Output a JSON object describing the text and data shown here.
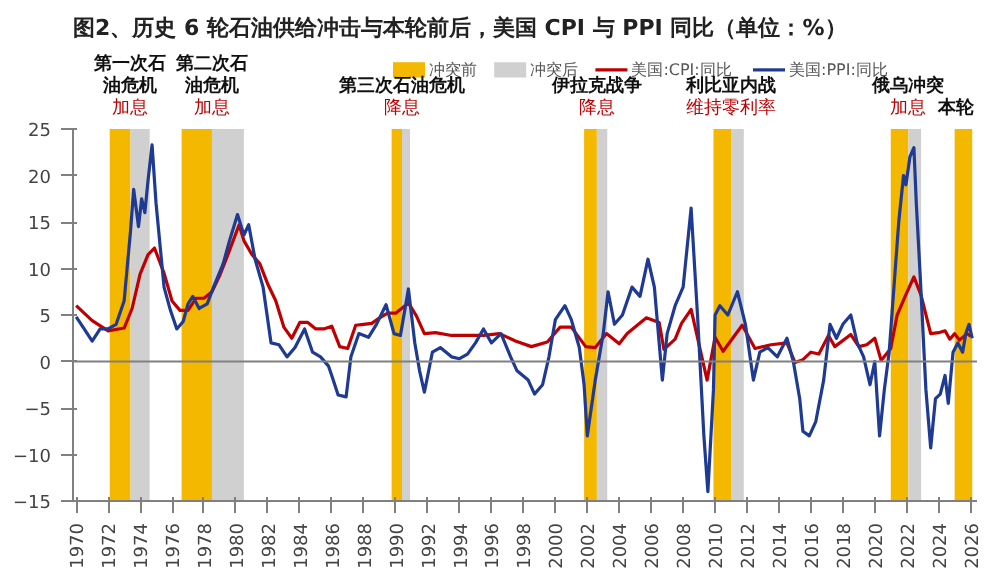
{
  "chart_data": {
    "type": "line",
    "title": "图2、历史 6 轮石油供给冲击与本轮前后，美国 CPI 与 PPI 同比（单位：%）",
    "series": [
      {
        "name": "美国:CPI:同比",
        "color": "#c00000",
        "x": [
          1970,
          1971,
          1972,
          1973,
          1973.5,
          1974,
          1974.5,
          1974.9,
          1975.5,
          1976,
          1976.5,
          1977,
          1977.5,
          1978,
          1978.5,
          1979,
          1979.5,
          1980.2,
          1980.5,
          1981,
          1981.5,
          1982,
          1982.5,
          1983,
          1983.5,
          1984,
          1984.5,
          1985,
          1985.5,
          1986,
          1986.5,
          1987,
          1987.5,
          1988,
          1988.5,
          1989,
          1989.5,
          1990,
          1990.8,
          1991.3,
          1991.8,
          1992.5,
          1993.5,
          1994.5,
          1995.5,
          1996.5,
          1997.5,
          1998.5,
          1999.5,
          2000.3,
          2001,
          2001.9,
          2002.5,
          2003.2,
          2004,
          2004.5,
          2005.7,
          2006.5,
          2006.8,
          2007.5,
          2007.9,
          2008.5,
          2009.5,
          2010,
          2010.5,
          2011.7,
          2012.5,
          2013.5,
          2014.5,
          2015,
          2015.5,
          2016,
          2016.5,
          2017.1,
          2017.5,
          2018.5,
          2019,
          2019.5,
          2020,
          2020.4,
          2021,
          2021.4,
          2021.9,
          2022.45,
          2022.9,
          2023.5,
          2024,
          2024.4,
          2024.7,
          2025,
          2025.3,
          2025.8,
          2026
        ],
        "values": [
          6.0,
          4.4,
          3.3,
          3.6,
          5.7,
          9.4,
          11.5,
          12.2,
          9.5,
          6.5,
          5.5,
          5.5,
          6.8,
          6.8,
          7.5,
          9.3,
          11.5,
          14.7,
          13.0,
          11.5,
          10.5,
          8.3,
          6.5,
          3.7,
          2.5,
          4.2,
          4.2,
          3.5,
          3.5,
          3.8,
          1.6,
          1.4,
          3.9,
          4.0,
          4.1,
          4.7,
          5.2,
          5.2,
          6.3,
          4.9,
          3.0,
          3.1,
          2.8,
          2.8,
          2.8,
          3.0,
          2.2,
          1.6,
          2.1,
          3.7,
          3.7,
          1.6,
          1.5,
          3.0,
          1.9,
          3.0,
          4.7,
          4.2,
          1.3,
          2.4,
          4.1,
          5.6,
          -2.0,
          2.6,
          1.1,
          3.9,
          1.4,
          1.8,
          2.0,
          -0.1,
          0.2,
          1.0,
          0.8,
          2.8,
          1.6,
          2.9,
          1.6,
          1.8,
          2.5,
          0.1,
          1.4,
          5.0,
          7.0,
          9.1,
          7.1,
          3.0,
          3.1,
          3.3,
          2.4,
          3.0,
          2.3,
          3.0,
          2.7
        ]
      },
      {
        "name": "美国:PPI:同比",
        "color": "#1f3a93",
        "x": [
          1970,
          1970.5,
          1971,
          1971.5,
          1972,
          1972.5,
          1973,
          1973.4,
          1973.6,
          1973.9,
          1974.1,
          1974.3,
          1974.5,
          1974.75,
          1975,
          1975.5,
          1975.9,
          1976.3,
          1976.7,
          1977,
          1977.3,
          1977.7,
          1978.2,
          1978.6,
          1979.2,
          1979.6,
          1980.1,
          1980.5,
          1980.8,
          1981.2,
          1981.7,
          1982.2,
          1982.7,
          1983.2,
          1983.7,
          1984.3,
          1984.8,
          1985.3,
          1985.8,
          1986,
          1986.4,
          1986.9,
          1987.2,
          1987.7,
          1988.3,
          1988.8,
          1989.4,
          1989.9,
          1990.3,
          1990.8,
          1991.2,
          1991.5,
          1991.8,
          1992.3,
          1992.8,
          1993.5,
          1994,
          1994.5,
          1995,
          1995.5,
          1996,
          1996.6,
          1997.2,
          1997.6,
          1998.3,
          1998.7,
          1999.2,
          1999.6,
          2000,
          2000.6,
          2001,
          2001.5,
          2001.8,
          2002,
          2002.5,
          2003,
          2003.3,
          2003.7,
          2004.2,
          2004.8,
          2005.3,
          2005.8,
          2006.2,
          2006.7,
          2007,
          2007.5,
          2008,
          2008.5,
          2008.9,
          2009.3,
          2009.55,
          2009.9,
          2010,
          2010.3,
          2010.8,
          2011.4,
          2011.9,
          2012.4,
          2012.8,
          2013.3,
          2013.9,
          2014.5,
          2014.9,
          2015.3,
          2015.5,
          2015.9,
          2016.3,
          2016.8,
          2017.2,
          2017.6,
          2018,
          2018.5,
          2018.9,
          2019.3,
          2019.7,
          2020,
          2020.3,
          2020.6,
          2020.9,
          2021.2,
          2021.5,
          2021.8,
          2021.95,
          2022.2,
          2022.45,
          2022.6,
          2022.85,
          2023.2,
          2023.5,
          2023.8,
          2024.1,
          2024.4,
          2024.6,
          2024.9,
          2025.2,
          2025.5,
          2025.7,
          2025.9,
          2026.1
        ],
        "values": [
          4.8,
          3.5,
          2.2,
          3.5,
          3.5,
          4.0,
          6.5,
          14,
          18.5,
          14.5,
          17.5,
          16,
          19.5,
          23.3,
          17,
          8,
          5.5,
          3.5,
          4.3,
          6.2,
          7.0,
          5.7,
          6.2,
          8.0,
          10.5,
          13,
          15.8,
          13.6,
          14.7,
          11.0,
          8.0,
          2.0,
          1.8,
          0.5,
          1.5,
          3.5,
          1.0,
          0.5,
          -0.5,
          -1.5,
          -3.6,
          -3.8,
          0.5,
          3.0,
          2.6,
          4.0,
          6.1,
          3.0,
          2.8,
          7.8,
          2.0,
          -1.0,
          -3.3,
          1.0,
          1.5,
          0.5,
          0.3,
          0.8,
          2.0,
          3.5,
          2.0,
          3.0,
          0.5,
          -1,
          -2.0,
          -3.5,
          -2.5,
          0.5,
          4.5,
          6.0,
          4.5,
          1.5,
          -2.5,
          -8,
          -2,
          3,
          7.5,
          4,
          5,
          8,
          7,
          11,
          8,
          -2,
          3,
          6,
          8,
          16.5,
          5,
          -8,
          -14,
          -3,
          5,
          6,
          5,
          7.5,
          4,
          -2,
          1,
          1.5,
          0.5,
          2.5,
          0,
          -4,
          -7.5,
          -8,
          -6.5,
          -2,
          4,
          2.5,
          4,
          5,
          2,
          0.5,
          -2.5,
          0,
          -8,
          -3,
          1,
          8,
          15,
          20,
          19,
          22,
          23,
          17,
          9,
          -3,
          -9.3,
          -4,
          -3.5,
          -1.5,
          -4.5,
          1,
          2,
          1,
          3,
          4,
          2.5
        ]
      }
    ],
    "bands": [
      {
        "axis": "x",
        "from": 1972.1,
        "to": 1973.4,
        "label": "冲突前",
        "color": "#f5b800"
      },
      {
        "axis": "x",
        "from": 1973.4,
        "to": 1974.6,
        "label": "冲突后",
        "color": "#d0d0d0"
      },
      {
        "axis": "x",
        "from": 1976.6,
        "to": 1978.5,
        "color": "#f5b800"
      },
      {
        "axis": "x",
        "from": 1978.5,
        "to": 1980.5,
        "color": "#d0d0d0"
      },
      {
        "axis": "x",
        "from": 1989.75,
        "to": 1990.4,
        "color": "#f5b800"
      },
      {
        "axis": "x",
        "from": 1990.4,
        "to": 1990.9,
        "color": "#d0d0d0"
      },
      {
        "axis": "x",
        "from": 2001.8,
        "to": 2002.6,
        "color": "#f5b800"
      },
      {
        "axis": "x",
        "from": 2002.6,
        "to": 2003.25,
        "color": "#d0d0d0"
      },
      {
        "axis": "x",
        "from": 2009.9,
        "to": 2011.0,
        "color": "#f5b800"
      },
      {
        "axis": "x",
        "from": 2011.0,
        "to": 2011.8,
        "color": "#d0d0d0"
      },
      {
        "axis": "x",
        "from": 2021.0,
        "to": 2022.1,
        "color": "#f5b800"
      },
      {
        "axis": "x",
        "from": 2022.1,
        "to": 2022.9,
        "color": "#d0d0d0"
      },
      {
        "axis": "x",
        "from": 2025.0,
        "to": 2026.1,
        "color": "#f5b800"
      }
    ],
    "ref_lines": [
      {
        "axis": "y",
        "value": 0,
        "color": "#808080"
      }
    ],
    "annotations": [
      "第一次石油危机",
      "加息",
      "第二次石油危机",
      "加息",
      "第三次石油危机",
      "降息",
      "伊拉克战争",
      "降息",
      "利比亚内战",
      "维持零利率",
      "俄乌冲突",
      "加息",
      "本轮"
    ],
    "xlim": [
      1969.8,
      2026.4
    ],
    "xticks": [
      1970,
      1972,
      1974,
      1976,
      1978,
      1980,
      1982,
      1984,
      1986,
      1988,
      1990,
      1992,
      1994,
      1996,
      1998,
      2000,
      2002,
      2004,
      2006,
      2008,
      2010,
      2012,
      2014,
      2016,
      2018,
      2020,
      2022,
      2024,
      2026
    ],
    "ylim": [
      -15,
      25
    ],
    "yticks": [
      -15,
      -10,
      -5,
      0,
      5,
      10,
      15,
      20,
      25
    ],
    "grid": false,
    "legend": "top",
    "line_style": "solid",
    "marker": "none"
  }
}
